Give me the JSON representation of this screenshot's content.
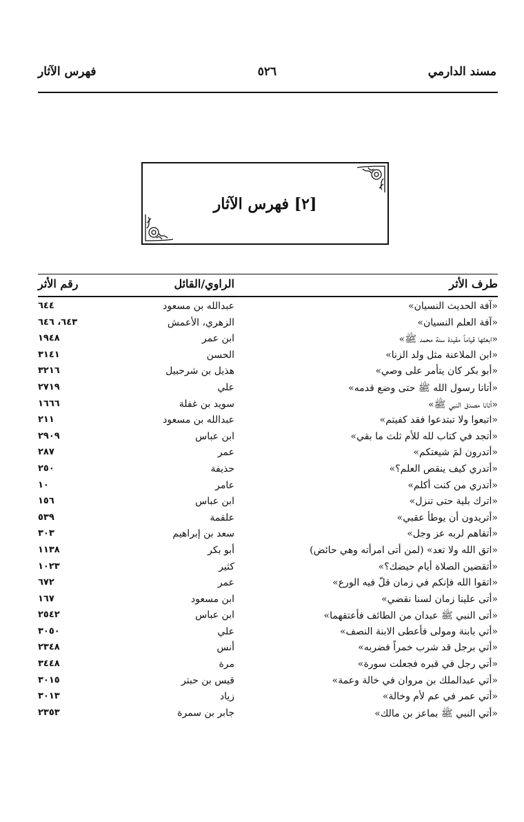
{
  "header": {
    "book_title": "مسند الدارمي",
    "page_number": "٥٢٦",
    "section_title": "فهرس الآثار"
  },
  "title_box": {
    "title": "[٢] فهرس الآثار"
  },
  "table": {
    "columns": [
      "طرف الأثر",
      "الراوي/القائل",
      "رقم الأثر"
    ],
    "rows": [
      {
        "text": "«آفة الحديث النسيان»",
        "narrator": "عبدالله بن مسعود",
        "number": "٦٤٤"
      },
      {
        "text": "«آفة العلم النسيان»",
        "narrator": "الزهري، الأعمش",
        "number": "٦٤٣، ٦٤٦"
      },
      {
        "text": "«ابعثها قياماً مقيدة سنة محمد ﷺ»",
        "narrator": "ابن عمر",
        "number": "١٩٤٨"
      },
      {
        "text": "«ابن الملاعنة مثل ولد الزنا»",
        "narrator": "الحسن",
        "number": "٣١٤١"
      },
      {
        "text": "«أبو بكر كان يتأمر على وصي»",
        "narrator": "هذيل بن شرحبيل",
        "number": "٣٢١٦"
      },
      {
        "text": "«أتانا رسول الله ﷺ حتى وضع قدمه»",
        "narrator": "علي",
        "number": "٢٧١٩"
      },
      {
        "text": "«أتانا مصدق النبي ﷺ»",
        "narrator": "سويد بن غفلة",
        "number": "١٦٦٦"
      },
      {
        "text": "«اتبعوا ولا تبتدعوا فقد كفيتم»",
        "narrator": "عبدالله بن مسعود",
        "number": "٢١١"
      },
      {
        "text": "«أتجد في كتاب لله للأم ثلث ما بقي»",
        "narrator": "ابن عباس",
        "number": "٢٩٠٩"
      },
      {
        "text": "«أتدرون لمَ شيعتكم»",
        "narrator": "عمر",
        "number": "٢٨٧"
      },
      {
        "text": "«أتدري كيف ينقص العلم؟»",
        "narrator": "حذيفة",
        "number": "٢٥٠"
      },
      {
        "text": "«أتدري من كنت أكلم»",
        "narrator": "عامر",
        "number": "١٠"
      },
      {
        "text": "«اترك بلية حتى تنزل»",
        "narrator": "ابن عباس",
        "number": "١٥٦"
      },
      {
        "text": "«أتريدون أن يوطأ عقبي»",
        "narrator": "علقمة",
        "number": "٥٣٩"
      },
      {
        "text": "«أتقاهم لربه عز وجل»",
        "narrator": "سعد بن إبراهيم",
        "number": "٣٠٣"
      },
      {
        "text": "«اتق الله ولا تعد» (لمن أتى امرأته وهي حائض)",
        "narrator": "أبو بكر",
        "number": "١١٣٨"
      },
      {
        "text": "«أتقضين الصلاة أيام حيضك؟»",
        "narrator": "كثير",
        "number": "١٠٢٣"
      },
      {
        "text": "«اتقوا الله فإنكم في زمان قلّ فيه الورع»",
        "narrator": "عمر",
        "number": "٦٧٢"
      },
      {
        "text": "«أتى علينا زمان لسنا نقضي»",
        "narrator": "ابن مسعود",
        "number": "١٦٧"
      },
      {
        "text": "«أتى النبي ﷺ عبدان من الطائف فأعتقهما»",
        "narrator": "ابن عباس",
        "number": "٢٥٤٢"
      },
      {
        "text": "«أتي بابنة ومولى فأعطى الابنة النصف»",
        "narrator": "علي",
        "number": "٣٠٥٠"
      },
      {
        "text": "«أتي برجل قد شرب خمراً فضربه»",
        "narrator": "أنس",
        "number": "٢٣٤٨"
      },
      {
        "text": "«أتي رجل في قبره فجعلت سورة»",
        "narrator": "مرة",
        "number": "٣٤٤٨"
      },
      {
        "text": "«أتي عبدالملك بن مروان في خالة وعمة»",
        "narrator": "قيس بن حبتر",
        "number": "٣٠١٥"
      },
      {
        "text": "«أتي عمر في عم لأم وخالة»",
        "narrator": "زياد",
        "number": "٣٠١٣"
      },
      {
        "text": "«أتي النبي ﷺ بماعز بن مالك»",
        "narrator": "جابر بن سمرة",
        "number": "٢٣٥٣"
      }
    ]
  }
}
